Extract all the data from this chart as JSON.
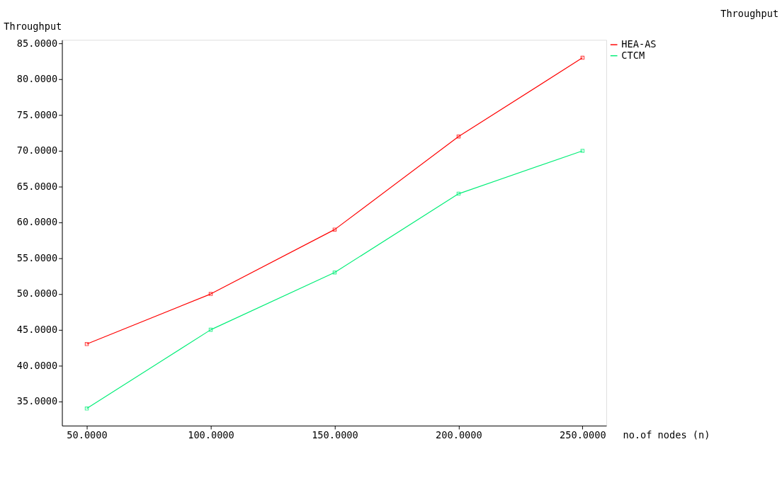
{
  "chart_data": {
    "type": "line",
    "title": "Throughput",
    "ylabel": "Throughput",
    "xlabel": "no.of nodes (n)",
    "x": [
      50,
      100,
      150,
      200,
      250
    ],
    "series": [
      {
        "name": "HEA-AS",
        "color": "#ff0000",
        "values": [
          43,
          50,
          59,
          72,
          83
        ]
      },
      {
        "name": "CTCM",
        "color": "#00ee77",
        "values": [
          34,
          45,
          53,
          64,
          70
        ]
      }
    ],
    "xlim": [
      40,
      259.6
    ],
    "ylim": [
      31.6,
      85.5
    ],
    "xticks": [
      {
        "value": 50,
        "label": "50.0000"
      },
      {
        "value": 100,
        "label": "100.0000"
      },
      {
        "value": 150,
        "label": "150.0000"
      },
      {
        "value": 200,
        "label": "200.0000"
      },
      {
        "value": 250,
        "label": "250.0000"
      }
    ],
    "yticks": [
      {
        "value": 35,
        "label": "35.0000"
      },
      {
        "value": 40,
        "label": "40.0000"
      },
      {
        "value": 45,
        "label": "45.0000"
      },
      {
        "value": 50,
        "label": "50.0000"
      },
      {
        "value": 55,
        "label": "55.0000"
      },
      {
        "value": 60,
        "label": "60.0000"
      },
      {
        "value": 65,
        "label": "65.0000"
      },
      {
        "value": 70,
        "label": "70.0000"
      },
      {
        "value": 75,
        "label": "75.0000"
      },
      {
        "value": 80,
        "label": "80.0000"
      },
      {
        "value": 85,
        "label": "85.0000"
      }
    ],
    "grid": false,
    "legend": "top right",
    "marker": "square",
    "line_style": "solid"
  }
}
